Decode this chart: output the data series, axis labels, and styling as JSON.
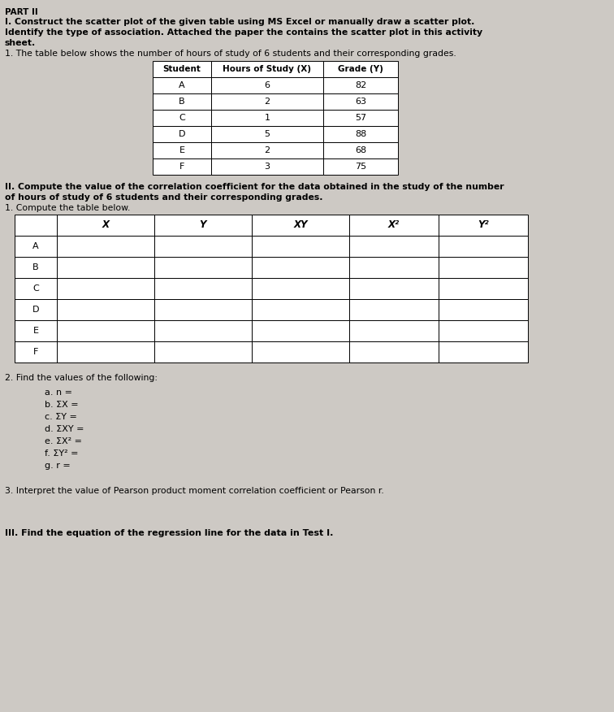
{
  "bg_color": "#cdc9c4",
  "header_text": "PART II",
  "line1": "I. Construct the scatter plot of the given table using MS Excel or manually draw a scatter plot.",
  "line2": "Identify the type of association. Attached the paper the contains the scatter plot in this activity",
  "line3": "sheet.",
  "line4": "1. The table below shows the number of hours of study of 6 students and their corresponding grades.",
  "table1_headers": [
    "Student",
    "Hours of Study (X)",
    "Grade (Y)"
  ],
  "table1_rows": [
    [
      "A",
      "6",
      "82"
    ],
    [
      "B",
      "2",
      "63"
    ],
    [
      "C",
      "1",
      "57"
    ],
    [
      "D",
      "5",
      "88"
    ],
    [
      "E",
      "2",
      "68"
    ],
    [
      "F",
      "3",
      "75"
    ]
  ],
  "section_II_line1": "II. Compute the value of the correlation coefficient for the data obtained in the study of the number",
  "section_II_line2": "of hours of study of 6 students and their corresponding grades.",
  "section_II_line3": "1. Compute the table below.",
  "table2_headers": [
    "",
    "X",
    "Y",
    "XY",
    "X²",
    "Y²"
  ],
  "table2_rows": [
    "A",
    "B",
    "C",
    "D",
    "E",
    "F"
  ],
  "find_label": "2. Find the values of the following:",
  "find_items_left": [
    "a. n =",
    "b. ΣX =",
    "c. ΣY =",
    "d. ΣXY =",
    "e. ΣX² =",
    "f. ΣY² =",
    "g. r ="
  ],
  "interpret_line": "3. Interpret the value of Pearson product moment correlation coefficient or Pearson r.",
  "section_III": "III. Find the equation of the regression line for the data in Test I.",
  "white": "#ffffff",
  "black": "#000000"
}
